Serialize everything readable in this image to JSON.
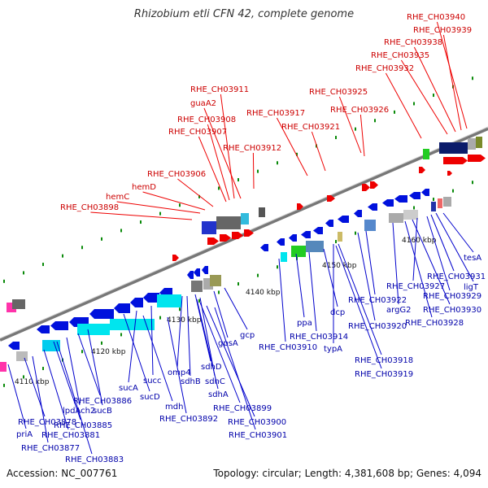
{
  "title": "Rhizobium etli CFN 42, complete genome",
  "accession": "Accession: NC_007761",
  "summary": "Topology: circular; Length: 4,381,608 bp; Genes: 4,094",
  "colors": {
    "forward_gene": "#ff0000",
    "reverse_gene": "#0000ff",
    "forward_label": "#cc0000",
    "reverse_label": "#0000aa",
    "backbone": "#999999",
    "tick": "#008800"
  },
  "kbp_labels": [
    "4110 kbp",
    "4120 kbp",
    "4130 kbp",
    "4140 kbp",
    "4150 kbp",
    "4160 kbp"
  ],
  "top_labels": [
    "RHE_CH03940",
    "RHE_CH03939",
    "RHE_CH03938",
    "RHE_CH03935",
    "RHE_CH03932",
    "RHE_CH03925",
    "RHE_CH03926",
    "RHE_CH03921",
    "RHE_CH03917",
    "RHE_CH03911",
    "guaA2",
    "RHE_CH03908",
    "RHE_CH03907",
    "RHE_CH03912",
    "RHE_CH03906",
    "hemD",
    "hemC",
    "RHE_CH03898"
  ],
  "bottom_labels": [
    "tesA",
    "ligT",
    "RHE_CH03931",
    "RHE_CH03929",
    "RHE_CH03927",
    "RHE_CH03930",
    "RHE_CH03928",
    "argG2",
    "RHE_CH03922",
    "RHE_CH03920",
    "dcp",
    "RHE_CH03914",
    "ppa",
    "typA",
    "RHE_CH03910",
    "RHE_CH03918",
    "RHE_CH03919",
    "gcp",
    "gpsA",
    "sdhD",
    "omp4",
    "sdhB",
    "sdhC",
    "sdhA",
    "succ",
    "sucA",
    "sucD",
    "mdh",
    "RHE_CH03899",
    "RHE_CH03892",
    "RHE_CH03900",
    "RHE_CH03901",
    "RHE_CH03886",
    "lpdAch2",
    "sucB",
    "RHE_CH03885",
    "RHE_CH03878",
    "RHE_CH03881",
    "priA",
    "RHE_CH03877",
    "RHE_CH03883"
  ]
}
